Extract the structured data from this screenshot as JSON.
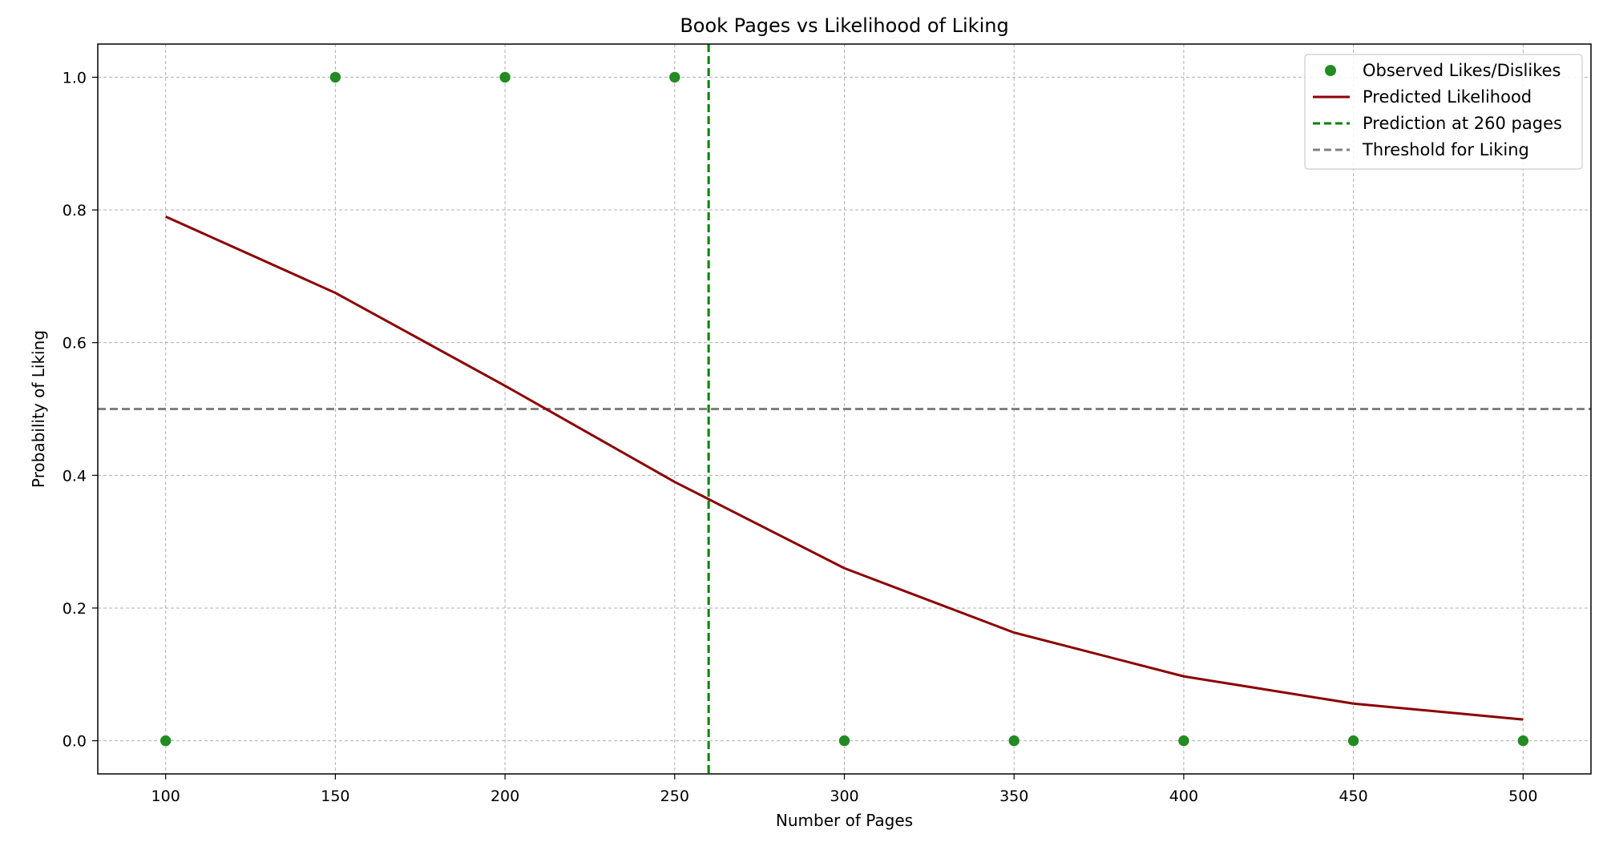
{
  "chart_data": {
    "type": "line",
    "title": "Book Pages vs Likelihood of Liking",
    "xlabel": "Number of Pages",
    "ylabel": "Probability of Liking",
    "xlim": [
      80,
      520
    ],
    "ylim": [
      -0.05,
      1.05
    ],
    "grid": true,
    "legend_position": "top-right",
    "x_ticks": [
      100,
      150,
      200,
      250,
      300,
      350,
      400,
      450,
      500
    ],
    "y_ticks": [
      0.0,
      0.2,
      0.4,
      0.6,
      0.8,
      1.0
    ],
    "x_tick_labels": [
      "100",
      "150",
      "200",
      "250",
      "300",
      "350",
      "400",
      "450",
      "500"
    ],
    "y_tick_labels": [
      "0.0",
      "0.2",
      "0.4",
      "0.6",
      "0.8",
      "1.0"
    ],
    "series": [
      {
        "name": "Observed Likes/Dislikes",
        "kind": "scatter",
        "color": "#228b22",
        "x": [
          100,
          150,
          200,
          250,
          300,
          350,
          400,
          450,
          500
        ],
        "y": [
          0,
          1,
          1,
          1,
          0,
          0,
          0,
          0,
          0
        ]
      },
      {
        "name": "Predicted Likelihood",
        "kind": "line",
        "color": "#8b0000",
        "x": [
          100,
          150,
          200,
          250,
          300,
          350,
          400,
          450,
          500
        ],
        "y": [
          0.79,
          0.675,
          0.535,
          0.39,
          0.26,
          0.163,
          0.097,
          0.056,
          0.032
        ]
      }
    ],
    "reference_lines": [
      {
        "name": "Prediction at 260 pages",
        "orientation": "vertical",
        "value": 260,
        "color": "#008000"
      },
      {
        "name": "Threshold for Liking",
        "orientation": "horizontal",
        "value": 0.5,
        "color": "#808080"
      }
    ]
  }
}
